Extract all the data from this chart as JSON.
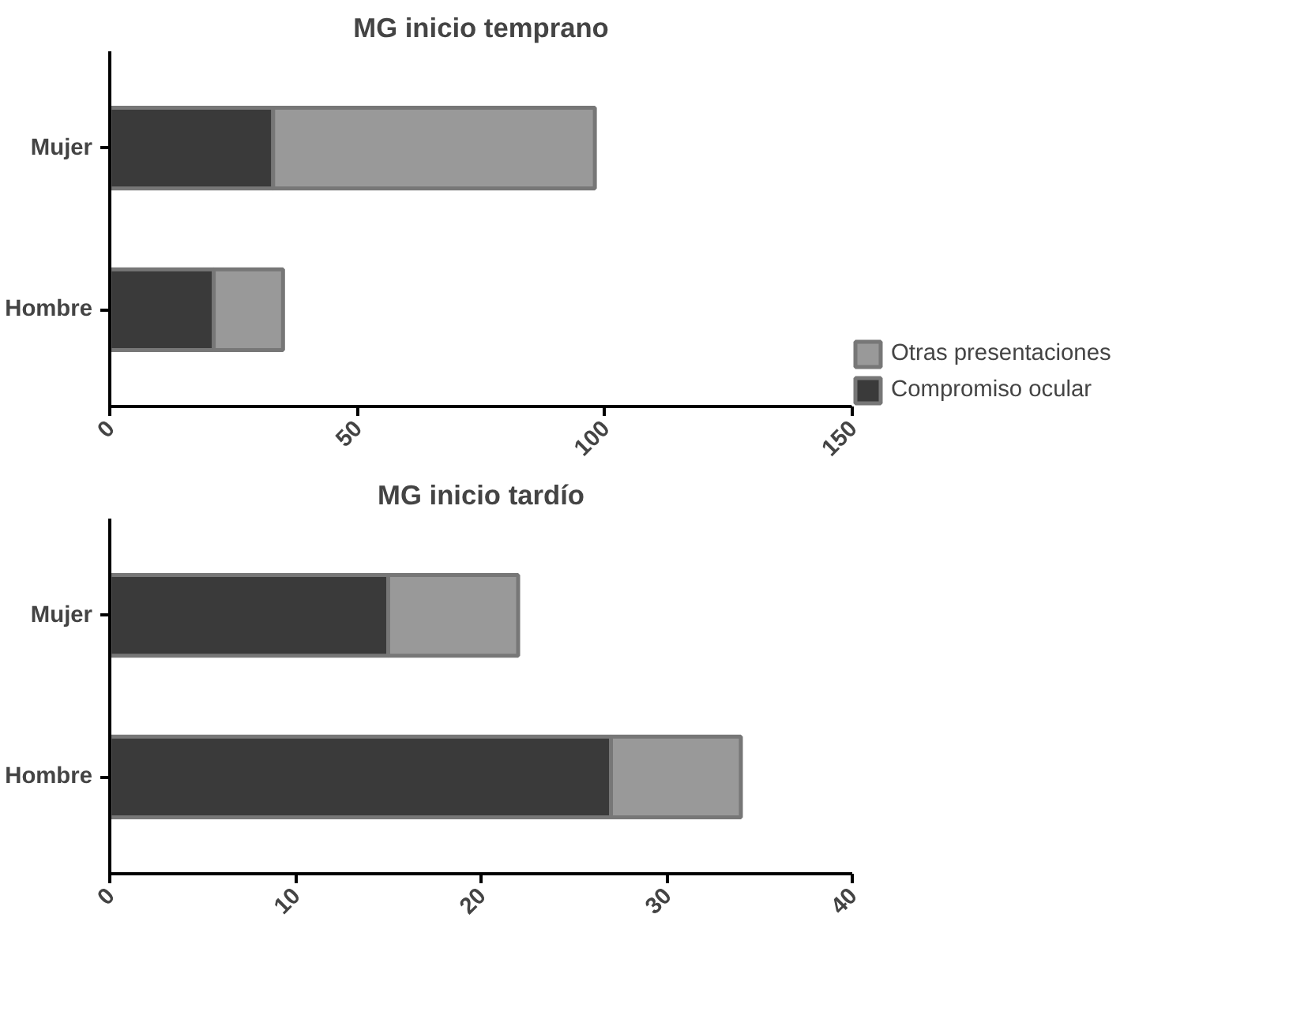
{
  "chart_data": [
    {
      "type": "bar",
      "title": "MG inicio temprano",
      "orientation": "horizontal",
      "stacked": true,
      "categories": [
        "Mujer",
        "Hombre"
      ],
      "series": [
        {
          "name": "Compromiso ocular",
          "color": "#3a3a3a",
          "values": [
            33,
            21
          ]
        },
        {
          "name": "Otras presentaciones",
          "color": "#999999",
          "values": [
            65,
            14
          ]
        }
      ],
      "xlim": [
        0,
        150
      ],
      "xticks": [
        0,
        50,
        100,
        150
      ],
      "grid": false,
      "legend": "bottom right"
    },
    {
      "type": "bar",
      "title": "MG inicio tardío",
      "orientation": "horizontal",
      "stacked": true,
      "categories": [
        "Mujer",
        "Hombre"
      ],
      "series": [
        {
          "color": "#3a3a3a",
          "values": [
            15,
            27
          ]
        },
        {
          "color": "#999999",
          "values": [
            7,
            7
          ]
        }
      ],
      "xlim": [
        0,
        40
      ],
      "xticks": [
        0,
        10,
        20,
        30,
        40
      ],
      "grid": false
    }
  ]
}
